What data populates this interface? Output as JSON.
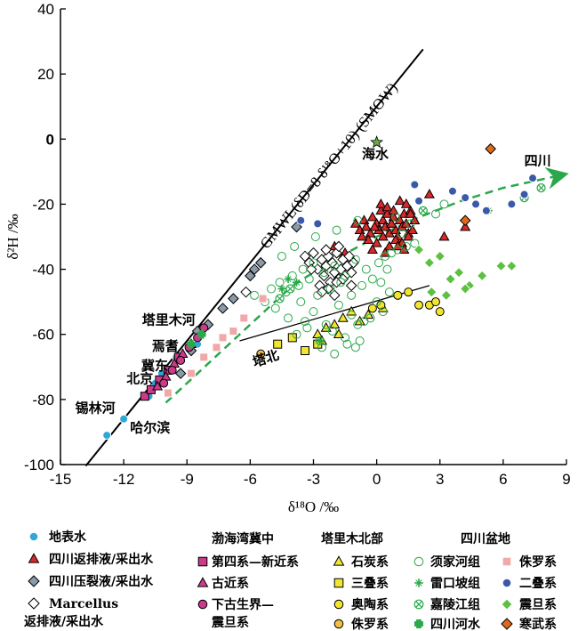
{
  "chart_data": {
    "type": "scatter",
    "xlabel": "δ¹⁸O /‰",
    "ylabel": "δ²H /‰",
    "xlim": [
      -15,
      9
    ],
    "ylim": [
      -100,
      40
    ],
    "x_ticks": [
      "-15",
      "-12",
      "-9",
      "-6",
      "-3",
      "0",
      "3",
      "6",
      "9"
    ],
    "y_ticks": [
      "-100",
      "-80",
      "-60",
      "-40",
      "-20",
      "0",
      "20",
      "40"
    ],
    "gmwl_label": "GMWL(δD=8 δ¹⁸O+10) (SMOW)",
    "gmwl": {
      "x": [
        -13.8,
        2.2
      ],
      "y": [
        -100.4,
        27.6
      ]
    },
    "tabei_line": {
      "x": [
        -6.5,
        2.5
      ],
      "y": [
        -62,
        -45
      ]
    },
    "sichuan_trend": {
      "x": [
        -10,
        -8,
        -6,
        -4,
        -2,
        0,
        2,
        4,
        6,
        8.8
      ],
      "y": [
        -81,
        -69,
        -57,
        -45,
        -37,
        -30,
        -24,
        -19,
        -15,
        -11
      ]
    },
    "annotations": {
      "seawater": "海水",
      "sichuan": "四川",
      "tabei": "塔北",
      "talimu": "塔里木河",
      "yanqi": "焉耆",
      "jidong": "冀东",
      "beijing": "北京",
      "xilinhe": "锡林河",
      "haerbin": "哈尔滨"
    },
    "series": [
      {
        "name": "地表水",
        "marker": "circle",
        "fill": "#2fa8d8",
        "stroke": "#fff",
        "x": [
          -12.8,
          -12.0,
          -10.8,
          -10.5,
          -10.2,
          -9.5,
          -8.5,
          -8.3
        ],
        "y": [
          -91,
          -86,
          -79,
          -75,
          -72,
          -67,
          -63,
          -60
        ]
      },
      {
        "name": "四川返排液/采出水",
        "marker": "triangle",
        "fill": "#d62a2a",
        "stroke": "#000",
        "x": [
          -1.0,
          -0.8,
          -0.6,
          -0.5,
          -0.3,
          -0.2,
          0.0,
          0.1,
          0.2,
          0.3,
          0.4,
          0.5,
          0.6,
          0.7,
          0.8,
          0.9,
          1.0,
          1.1,
          1.2,
          1.3,
          1.4,
          1.5,
          1.6,
          1.7,
          -0.4,
          0.0,
          0.3,
          0.6,
          0.9,
          1.2,
          1.5,
          -0.7,
          0.2,
          0.5,
          0.8,
          1.1,
          1.4,
          1.6,
          -0.2,
          0.4,
          1.0,
          1.3,
          2.5,
          -2.0,
          -1.5,
          3.2,
          4.2,
          1.8,
          0.7,
          -0.1
        ],
        "y": [
          -26,
          -28,
          -25,
          -27,
          -29,
          -24,
          -26,
          -28,
          -22,
          -25,
          -27,
          -23,
          -29,
          -26,
          -24,
          -28,
          -30,
          -25,
          -27,
          -23,
          -26,
          -29,
          -22,
          -28,
          -31,
          -32,
          -30,
          -33,
          -31,
          -32,
          -30,
          -30,
          -20,
          -21,
          -22,
          -19,
          -20,
          -23,
          -34,
          -35,
          -33,
          -34,
          -17,
          -33,
          -35,
          -30,
          -27,
          -25,
          -26,
          -27
        ]
      },
      {
        "name": "四川压裂液/采出水",
        "marker": "diamond",
        "fill": "#8a9aa8",
        "stroke": "#000",
        "x": [
          -9.3,
          -8.8,
          -8.5,
          -8.0,
          -7.3,
          -6.8,
          -6.0,
          -5.8,
          -5.5,
          -3.8
        ],
        "y": [
          -72,
          -65,
          -59,
          -57,
          -52,
          -49,
          -42,
          -40,
          -38,
          -27
        ]
      },
      {
        "name": "Marcellus 返排液/采出水",
        "marker": "diamond",
        "fill": "#fff",
        "stroke": "#000",
        "x": [
          -3.4,
          -3.2,
          -3.0,
          -2.8,
          -2.6,
          -2.5,
          -2.4,
          -2.3,
          -2.2,
          -2.1,
          -2.0,
          -1.9,
          -1.8,
          -1.7,
          -1.6,
          -1.5,
          -1.4,
          -1.3,
          -1.2,
          -1.1,
          -2.7,
          -2.3,
          -1.9,
          -2.6,
          -2.0,
          -1.6,
          -1.2,
          -3.1,
          -2.4,
          -1.8,
          -6.2
        ],
        "y": [
          -36,
          -38,
          -35,
          -40,
          -37,
          -42,
          -39,
          -36,
          -44,
          -38,
          -41,
          -35,
          -43,
          -40,
          -37,
          -42,
          -39,
          -36,
          -41,
          -38,
          -45,
          -46,
          -44,
          -47,
          -48,
          -43,
          -45,
          -40,
          -34,
          -33,
          -47
        ]
      },
      {
        "name": "第四系—新近系",
        "marker": "square",
        "fill": "#cc3a8a",
        "stroke": "#000",
        "x": [
          -11.0,
          -10.7,
          -10.3,
          -9.9,
          -9.4
        ],
        "y": [
          -79,
          -77,
          -74,
          -71,
          -67
        ]
      },
      {
        "name": "古近系",
        "marker": "triangle",
        "fill": "#cc3a8a",
        "stroke": "#000",
        "x": [
          -10.4,
          -10.0,
          -9.6,
          -9.2,
          -8.8
        ],
        "y": [
          -76,
          -73,
          -69,
          -66,
          -63
        ]
      },
      {
        "name": "下古生界—震旦系",
        "marker": "circle",
        "fill": "#cc3a8a",
        "stroke": "#000",
        "x": [
          -10.1,
          -9.7,
          -9.3,
          -8.9,
          -8.5,
          -8.2
        ],
        "y": [
          -75,
          -71,
          -68,
          -64,
          -61,
          -58
        ]
      },
      {
        "name": "石炭系",
        "marker": "triangle",
        "fill": "#f2e530",
        "stroke": "#000",
        "x": [
          -2.8,
          -2.4,
          -2.0,
          -1.6,
          -1.2,
          -0.8,
          -0.4,
          -1.8,
          -2.6,
          0.3
        ],
        "y": [
          -60,
          -58,
          -57,
          -55,
          -53,
          -56,
          -54,
          -60,
          -62,
          -52
        ]
      },
      {
        "name": "三叠系",
        "marker": "square",
        "fill": "#f2e530",
        "stroke": "#000",
        "x": [
          -4.7,
          -4.0,
          -3.4,
          -2.8
        ],
        "y": [
          -63,
          -61,
          -65,
          -63
        ]
      },
      {
        "name": "奥陶系",
        "marker": "circle",
        "fill": "#f2e530",
        "stroke": "#000",
        "x": [
          -0.2,
          0.2,
          1.0,
          1.5,
          2.0,
          2.5,
          3.0,
          2.8
        ],
        "y": [
          -52,
          -51,
          -48,
          -47,
          -51,
          -51,
          -53,
          -50
        ]
      },
      {
        "name": "侏罗系",
        "marker": "circle",
        "fill": "#f2c040",
        "stroke": "#000",
        "x": [
          -5.5
        ],
        "y": [
          -66
        ]
      },
      {
        "name": "须家河组",
        "marker": "circle",
        "fill": "none",
        "stroke": "#2aa84a",
        "x": [
          -5.8,
          -5.3,
          -5.0,
          -4.6,
          -4.3,
          -4.0,
          -3.7,
          -3.5,
          -3.2,
          -3.0,
          -2.8,
          -2.5,
          -2.2,
          -2.0,
          -1.7,
          -1.5,
          -1.2,
          -1.0,
          -0.7,
          -0.5,
          -0.2,
          0.1,
          0.4,
          0.7,
          1.0,
          1.4,
          1.8,
          -4.8,
          -4.2,
          -3.6,
          -3.0,
          -2.4,
          -1.8,
          -1.2,
          -0.6,
          0.0,
          0.6,
          -3.8,
          -3.3,
          -2.7,
          -2.1,
          -1.5,
          -0.9,
          -0.3,
          0.3,
          -4.5,
          -3.9,
          -2.9,
          -1.9,
          -0.9,
          0.9,
          1.6,
          2.2,
          2.8,
          3.2,
          -2.6,
          -2.0,
          -1.4,
          -0.8,
          0.5,
          -3.4,
          -1.0,
          0.2,
          1.2
        ],
        "y": [
          -48,
          -50,
          -46,
          -44,
          -47,
          -42,
          -45,
          -40,
          -43,
          -38,
          -48,
          -41,
          -46,
          -39,
          -44,
          -42,
          -48,
          -37,
          -45,
          -40,
          -43,
          -38,
          -36,
          -35,
          -34,
          -33,
          -32,
          -52,
          -55,
          -50,
          -53,
          -57,
          -51,
          -54,
          -56,
          -50,
          -47,
          -60,
          -58,
          -62,
          -59,
          -61,
          -57,
          -55,
          -53,
          -36,
          -33,
          -30,
          -28,
          -25,
          -24,
          -26,
          -22,
          -23,
          -20,
          -64,
          -66,
          -63,
          -62,
          -40,
          -56,
          -64,
          -44,
          -29
        ]
      },
      {
        "name": "雷口坡组",
        "marker": "plus",
        "fill": "none",
        "stroke": "#2aa84a",
        "x": [
          -4.5,
          -4.2,
          -3.8,
          -2.7,
          5.3
        ],
        "y": [
          -46,
          -43,
          -44,
          -62,
          -22
        ]
      },
      {
        "name": "嘉陵江组",
        "marker": "circlex",
        "fill": "none",
        "stroke": "#2aa84a",
        "x": [
          -4.6,
          -4.1,
          2.2,
          7.0,
          7.8
        ],
        "y": [
          -49,
          -46,
          -22,
          -18,
          -15
        ]
      },
      {
        "name": "四川河水",
        "marker": "cross",
        "fill": "#2aa84a",
        "stroke": "#2aa84a",
        "x": [
          -8.8,
          -8.3
        ],
        "y": [
          -63,
          -60
        ]
      },
      {
        "name": "侏罗系",
        "marker": "square",
        "fill": "#f0a8a8",
        "stroke": "#fff",
        "x": [
          -9.9,
          -8.8,
          -8.2,
          -7.6,
          -7.3,
          -6.8,
          -6.3,
          -5.4
        ],
        "y": [
          -78,
          -72,
          -67,
          -64,
          -61,
          -59,
          -55,
          -49
        ]
      },
      {
        "name": "二叠系",
        "marker": "circle",
        "fill": "#3a5aa8",
        "stroke": "#fff",
        "x": [
          -3.6,
          3.6,
          4.2,
          4.7,
          5.2,
          6.4,
          7.0,
          7.4,
          1.8,
          2.0,
          -2.8
        ],
        "y": [
          -25,
          -16,
          -18,
          -20,
          -22,
          -20,
          -17,
          -12,
          -14,
          -19,
          -26
        ]
      },
      {
        "name": "震旦系",
        "marker": "diamond",
        "fill": "#5cc040",
        "stroke": "#fff",
        "x": [
          2.0,
          2.5,
          3.0,
          3.5,
          3.9,
          4.4,
          5.0,
          5.9,
          6.4,
          2.6,
          3.3,
          4.2
        ],
        "y": [
          -34,
          -38,
          -36,
          -43,
          -41,
          -45,
          -42,
          -39,
          -39,
          -47,
          -48,
          -46
        ]
      },
      {
        "name": "寒武系",
        "marker": "diamond",
        "fill": "#e06a1a",
        "stroke": "#000",
        "x": [
          4.2,
          5.4
        ],
        "y": [
          -25,
          -3
        ]
      },
      {
        "name": "海水",
        "marker": "star",
        "fill": "#6aa84a",
        "stroke": "#000",
        "x": [
          0.0
        ],
        "y": [
          -1
        ]
      }
    ],
    "legend": {
      "group_headers": [
        "渤海湾冀中",
        "塔里木北部",
        "四川盆地"
      ],
      "col1": [
        {
          "label": "地表水",
          "marker": "circle",
          "fill": "#2fa8d8",
          "stroke": "#fff"
        },
        {
          "label": "四川返排液/采出水",
          "marker": "triangle",
          "fill": "#d62a2a",
          "stroke": "#000"
        },
        {
          "label": "四川压裂液/采出水",
          "marker": "diamond",
          "fill": "#8a9aa8",
          "stroke": "#000"
        },
        {
          "label": "Marcellus",
          "label2": "返排液/采出水",
          "marker": "diamond",
          "fill": "#fff",
          "stroke": "#000"
        }
      ],
      "col2": [
        {
          "label": "第四系—新近系",
          "marker": "square",
          "fill": "#cc3a8a",
          "stroke": "#000"
        },
        {
          "label": "古近系",
          "marker": "triangle",
          "fill": "#cc3a8a",
          "stroke": "#000"
        },
        {
          "label": "下古生界—",
          "label2": "震旦系",
          "marker": "circle",
          "fill": "#cc3a8a",
          "stroke": "#000"
        }
      ],
      "col3": [
        {
          "label": "石炭系",
          "marker": "triangle",
          "fill": "#f2e530",
          "stroke": "#000"
        },
        {
          "label": "三叠系",
          "marker": "square",
          "fill": "#f2e530",
          "stroke": "#000"
        },
        {
          "label": "奥陶系",
          "marker": "circle",
          "fill": "#f2e530",
          "stroke": "#000"
        },
        {
          "label": "侏罗系",
          "marker": "circle",
          "fill": "#f2c040",
          "stroke": "#000"
        }
      ],
      "col4": [
        {
          "label": "须家河组",
          "marker": "circle",
          "fill": "none",
          "stroke": "#2aa84a"
        },
        {
          "label": "雷口坡组",
          "marker": "plus",
          "fill": "none",
          "stroke": "#2aa84a"
        },
        {
          "label": "嘉陵江组",
          "marker": "circlex",
          "fill": "none",
          "stroke": "#2aa84a"
        },
        {
          "label": "四川河水",
          "marker": "cross",
          "fill": "#2aa84a",
          "stroke": "#2aa84a"
        }
      ],
      "col5": [
        {
          "label": "侏罗系",
          "marker": "square",
          "fill": "#f0a8a8",
          "stroke": "#fff"
        },
        {
          "label": "二叠系",
          "marker": "circle",
          "fill": "#3a5aa8",
          "stroke": "#fff"
        },
        {
          "label": "震旦系",
          "marker": "diamond",
          "fill": "#5cc040",
          "stroke": "#fff"
        },
        {
          "label": "寒武系",
          "marker": "diamond",
          "fill": "#e06a1a",
          "stroke": "#000"
        }
      ]
    },
    "grid": false
  }
}
